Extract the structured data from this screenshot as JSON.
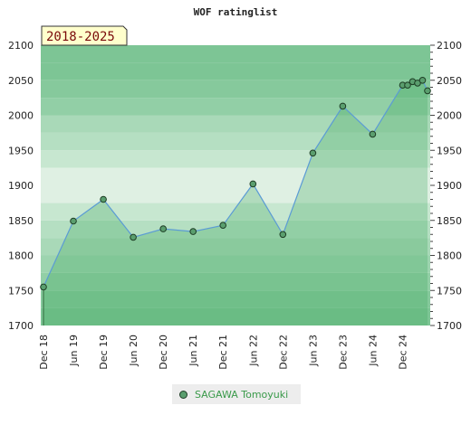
{
  "chart_data": {
    "type": "area",
    "title": "WOF ratinglist",
    "period_label": "2018-2025",
    "ylim": [
      1700,
      2100
    ],
    "y_ticks": [
      1700,
      1750,
      1800,
      1850,
      1900,
      1950,
      2000,
      2050,
      2100
    ],
    "x_tick_labels": [
      "Dec 18",
      "Jun 19",
      "Dec 19",
      "Jun 20",
      "Dec 20",
      "Jun 21",
      "Dec 21",
      "Jun 22",
      "Dec 22",
      "Jun 23",
      "Dec 23",
      "Jun 24",
      "Dec 24"
    ],
    "x_tick_dates": [
      "2018-12",
      "2019-06",
      "2019-12",
      "2020-06",
      "2020-12",
      "2021-06",
      "2021-12",
      "2022-06",
      "2022-12",
      "2023-06",
      "2023-12",
      "2024-06",
      "2024-12"
    ],
    "x_range": [
      "2018-12",
      "2025-05"
    ],
    "grid": true,
    "legend_position": "bottom",
    "series": [
      {
        "name": "SAGAWA Tomoyuki",
        "points": [
          {
            "x": "2018-12",
            "y": 1755
          },
          {
            "x": "2019-06",
            "y": 1849
          },
          {
            "x": "2019-12",
            "y": 1880
          },
          {
            "x": "2020-06",
            "y": 1826
          },
          {
            "x": "2020-12",
            "y": 1838
          },
          {
            "x": "2021-06",
            "y": 1834
          },
          {
            "x": "2021-12",
            "y": 1843
          },
          {
            "x": "2022-06",
            "y": 1902
          },
          {
            "x": "2022-12",
            "y": 1830
          },
          {
            "x": "2023-06",
            "y": 1946
          },
          {
            "x": "2023-12",
            "y": 2013
          },
          {
            "x": "2024-06",
            "y": 1973
          },
          {
            "x": "2024-12",
            "y": 2043
          },
          {
            "x": "2025-01",
            "y": 2043
          },
          {
            "x": "2025-02",
            "y": 2048
          },
          {
            "x": "2025-03",
            "y": 2046
          },
          {
            "x": "2025-04",
            "y": 2050
          },
          {
            "x": "2025-05",
            "y": 2035
          }
        ]
      }
    ],
    "colors": {
      "line": "#5b9bd5",
      "marker_fill": "#5a9e6e",
      "marker_stroke": "#1d3d24",
      "area_fill": "#3aa55a",
      "legend_text": "#3a9a4a",
      "period_text": "#7a0a0a",
      "period_bg": "#ffffcc"
    }
  }
}
